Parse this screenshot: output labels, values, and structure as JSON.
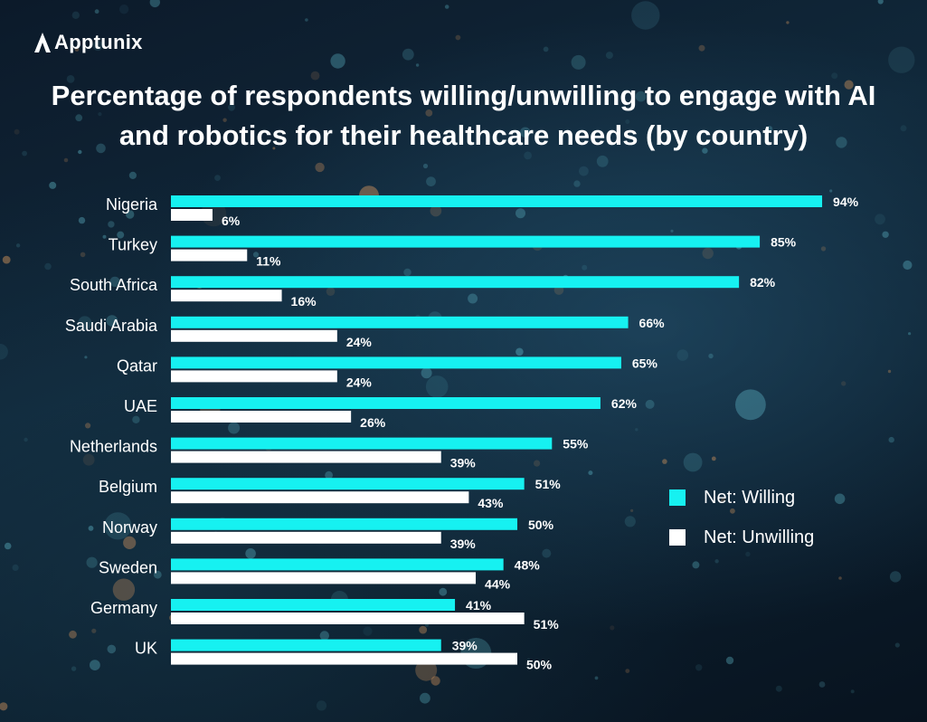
{
  "brand": {
    "name": "Apptunix"
  },
  "colors": {
    "willing": "#16f1f1",
    "unwilling": "#ffffff",
    "text": "#ffffff"
  },
  "chart_data": {
    "type": "bar",
    "orientation": "horizontal",
    "title": "Percentage of respondents willing/unwilling to engage with AI and robotics for their healthcare needs (by country)",
    "categories": [
      "Nigeria",
      "Turkey",
      "South Africa",
      "Saudi Arabia",
      "Qatar",
      "UAE",
      "Netherlands",
      "Belgium",
      "Norway",
      "Sweden",
      "Germany",
      "UK"
    ],
    "series": [
      {
        "name": "Net: Willing",
        "values": [
          94,
          85,
          82,
          66,
          65,
          62,
          55,
          51,
          50,
          48,
          41,
          39
        ],
        "labels": [
          "94%",
          "85%",
          "82%",
          "66%",
          "65%",
          "62%",
          "55%",
          "51%",
          "50%",
          "48%",
          "41%",
          "39%"
        ]
      },
      {
        "name": "Net: Unwilling",
        "values": [
          6,
          11,
          16,
          24,
          24,
          26,
          39,
          43,
          39,
          44,
          51,
          50
        ],
        "labels": [
          "6%",
          "11%",
          "16%",
          "24%",
          "24%",
          "26%",
          "39%",
          "43%",
          "39%",
          "44%",
          "51%",
          "50%"
        ]
      }
    ],
    "xlim": [
      0,
      100
    ],
    "legend_position": "right",
    "grid": false
  }
}
